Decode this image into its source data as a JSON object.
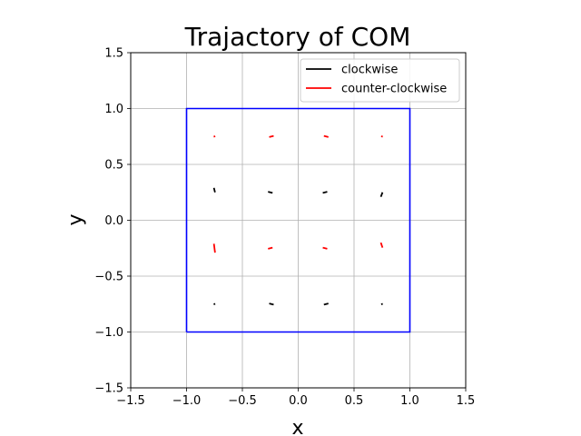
{
  "chart_data": {
    "type": "line",
    "title": "Trajactory of COM",
    "xlabel": "x",
    "ylabel": "y",
    "xlim": [
      -1.5,
      1.5
    ],
    "ylim": [
      -1.5,
      1.5
    ],
    "xticks": [
      "−1.5",
      "−1.0",
      "−0.5",
      "0.0",
      "0.5",
      "1.0",
      "1.5"
    ],
    "yticks": [
      "−1.5",
      "−1.0",
      "−0.5",
      "0.0",
      "0.5",
      "1.0",
      "1.5"
    ],
    "xtick_values": [
      -1.5,
      -1.0,
      -0.5,
      0.0,
      0.5,
      1.0,
      1.5
    ],
    "ytick_values": [
      -1.5,
      -1.0,
      -0.5,
      0.0,
      0.5,
      1.0,
      1.5
    ],
    "grid": true,
    "legend_position": "top-right",
    "boundary": {
      "color": "#0000ff",
      "x": [
        -1,
        1,
        1,
        -1,
        -1
      ],
      "y": [
        -1,
        -1,
        1,
        1,
        -1
      ]
    },
    "series": [
      {
        "name": "clockwise",
        "color": "#000000",
        "segments": [
          {
            "x": [
              -0.755,
              -0.745
            ],
            "y": [
              0.29,
              0.25
            ]
          },
          {
            "x": [
              -0.27,
              -0.23
            ],
            "y": [
              0.255,
              0.245
            ]
          },
          {
            "x": [
              0.22,
              0.26
            ],
            "y": [
              0.245,
              0.255
            ]
          },
          {
            "x": [
              0.74,
              0.755
            ],
            "y": [
              0.21,
              0.25
            ]
          },
          {
            "x": [
              -0.757,
              -0.743
            ],
            "y": [
              -0.752,
              -0.748
            ]
          },
          {
            "x": [
              -0.26,
              -0.22
            ],
            "y": [
              -0.745,
              -0.755
            ]
          },
          {
            "x": [
              0.23,
              0.27
            ],
            "y": [
              -0.755,
              -0.745
            ]
          },
          {
            "x": [
              0.743,
              0.757
            ],
            "y": [
              -0.752,
              -0.748
            ]
          }
        ]
      },
      {
        "name": "counter-clockwise",
        "color": "#ff0000",
        "segments": [
          {
            "x": [
              -0.757,
              -0.743
            ],
            "y": [
              0.748,
              0.752
            ]
          },
          {
            "x": [
              -0.26,
              -0.22
            ],
            "y": [
              0.745,
              0.755
            ]
          },
          {
            "x": [
              0.23,
              0.27
            ],
            "y": [
              0.755,
              0.745
            ]
          },
          {
            "x": [
              0.743,
              0.757
            ],
            "y": [
              0.752,
              0.748
            ]
          },
          {
            "x": [
              -0.755,
              -0.745
            ],
            "y": [
              -0.21,
              -0.29
            ]
          },
          {
            "x": [
              -0.27,
              -0.23
            ],
            "y": [
              -0.255,
              -0.245
            ]
          },
          {
            "x": [
              0.22,
              0.26
            ],
            "y": [
              -0.245,
              -0.255
            ]
          },
          {
            "x": [
              0.74,
              0.755
            ],
            "y": [
              -0.2,
              -0.245
            ]
          }
        ]
      }
    ]
  }
}
